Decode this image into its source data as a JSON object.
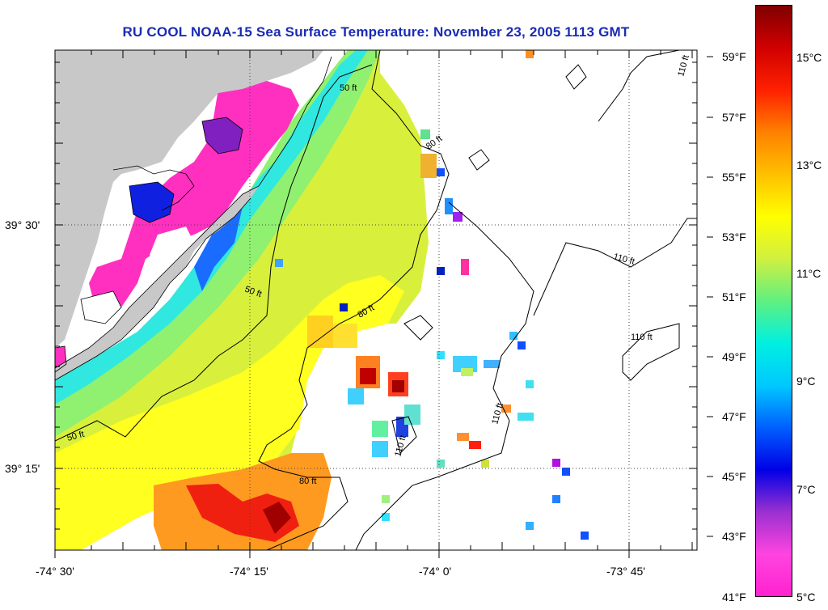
{
  "title": "RU COOL  NOAA-15  Sea Surface Temperature:  November 23, 2005 1113 GMT",
  "latitude_labels": [
    "39° 30'",
    "39° 15'"
  ],
  "longitude_labels": [
    "-74° 30'",
    "-74° 15'",
    "-74° 0'",
    "-73° 45'"
  ],
  "fahrenheit_labels": [
    "59°F",
    "57°F",
    "55°F",
    "53°F",
    "51°F",
    "49°F",
    "47°F",
    "45°F",
    "43°F",
    "41°F"
  ],
  "celsius_labels": [
    "15°C",
    "13°C",
    "11°C",
    "9°C",
    "7°C",
    "5°C"
  ],
  "contour_labels": [
    "50 ft",
    "80 ft",
    "110 ft"
  ],
  "colors": {
    "title": "#1a2bb4",
    "land": "#c8c8c8",
    "grid": "#555555"
  },
  "colorbar": {
    "min_c": 5,
    "max_c": 16,
    "stops": [
      "#ff22d0",
      "#ff44e0",
      "#9a30d0",
      "#0000e6",
      "#0060ff",
      "#00c8ff",
      "#00f0e0",
      "#60f080",
      "#d0f040",
      "#ffff00",
      "#ffc000",
      "#ff8000",
      "#ff2000",
      "#d00000",
      "#800000"
    ]
  }
}
